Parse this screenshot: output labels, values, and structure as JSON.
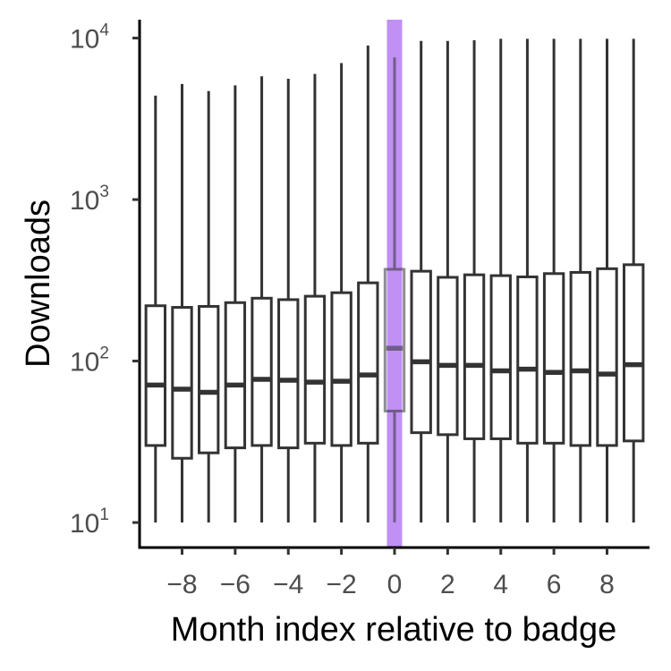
{
  "chart_data": {
    "type": "boxplot",
    "xlabel": "Month index relative to badge",
    "ylabel": "Downloads",
    "y_scale": "log10",
    "ylim": [
      7,
      13000
    ],
    "xlim": [
      -9.6,
      9.6
    ],
    "x_ticks": [
      {
        "value": -8,
        "label": "−8"
      },
      {
        "value": -6,
        "label": "−6"
      },
      {
        "value": -4,
        "label": "−4"
      },
      {
        "value": -2,
        "label": "−2"
      },
      {
        "value": 0,
        "label": "0"
      },
      {
        "value": 2,
        "label": "2"
      },
      {
        "value": 4,
        "label": "4"
      },
      {
        "value": 6,
        "label": "6"
      },
      {
        "value": 8,
        "label": "8"
      }
    ],
    "y_ticks": [
      {
        "value": 10,
        "base": "10",
        "exp": "1"
      },
      {
        "value": 100,
        "base": "10",
        "exp": "2"
      },
      {
        "value": 1000,
        "base": "10",
        "exp": "3"
      },
      {
        "value": 10000,
        "base": "10",
        "exp": "4"
      }
    ],
    "highlight": {
      "x": 0,
      "color": "#b57cf2"
    },
    "box_color": "#333333",
    "boxes": [
      {
        "x": -9,
        "whisker_low": 10,
        "q1": 30,
        "median": 71,
        "q3": 220,
        "whisker_high": 4400
      },
      {
        "x": -8,
        "whisker_low": 10,
        "q1": 25,
        "median": 67,
        "q3": 215,
        "whisker_high": 5200
      },
      {
        "x": -7,
        "whisker_low": 10,
        "q1": 27,
        "median": 64,
        "q3": 218,
        "whisker_high": 4700
      },
      {
        "x": -6,
        "whisker_low": 10,
        "q1": 29,
        "median": 71,
        "q3": 230,
        "whisker_high": 5100
      },
      {
        "x": -5,
        "whisker_low": 10,
        "q1": 30,
        "median": 77,
        "q3": 245,
        "whisker_high": 5800
      },
      {
        "x": -4,
        "whisker_low": 10,
        "q1": 29,
        "median": 76,
        "q3": 240,
        "whisker_high": 5600
      },
      {
        "x": -3,
        "whisker_low": 10,
        "q1": 31,
        "median": 74,
        "q3": 252,
        "whisker_high": 6000
      },
      {
        "x": -2,
        "whisker_low": 10,
        "q1": 30,
        "median": 75,
        "q3": 265,
        "whisker_high": 7000
      },
      {
        "x": -1,
        "whisker_low": 10,
        "q1": 31,
        "median": 82,
        "q3": 305,
        "whisker_high": 9000
      },
      {
        "x": 0,
        "whisker_low": 10,
        "q1": 49,
        "median": 120,
        "q3": 370,
        "whisker_high": 7600
      },
      {
        "x": 1,
        "whisker_low": 10,
        "q1": 36,
        "median": 99,
        "q3": 360,
        "whisker_high": 9600
      },
      {
        "x": 2,
        "whisker_low": 10,
        "q1": 35,
        "median": 94,
        "q3": 330,
        "whisker_high": 9600
      },
      {
        "x": 3,
        "whisker_low": 10,
        "q1": 33,
        "median": 94,
        "q3": 342,
        "whisker_high": 9700
      },
      {
        "x": 4,
        "whisker_low": 10,
        "q1": 33,
        "median": 87,
        "q3": 338,
        "whisker_high": 9900
      },
      {
        "x": 5,
        "whisker_low": 10,
        "q1": 31,
        "median": 89,
        "q3": 332,
        "whisker_high": 9900
      },
      {
        "x": 6,
        "whisker_low": 10,
        "q1": 31,
        "median": 85,
        "q3": 348,
        "whisker_high": 9900
      },
      {
        "x": 7,
        "whisker_low": 10,
        "q1": 30,
        "median": 87,
        "q3": 354,
        "whisker_high": 9900
      },
      {
        "x": 8,
        "whisker_low": 10,
        "q1": 30,
        "median": 83,
        "q3": 373,
        "whisker_high": 9900
      },
      {
        "x": 9,
        "whisker_low": 10,
        "q1": 32,
        "median": 95,
        "q3": 395,
        "whisker_high": 9900
      }
    ]
  }
}
